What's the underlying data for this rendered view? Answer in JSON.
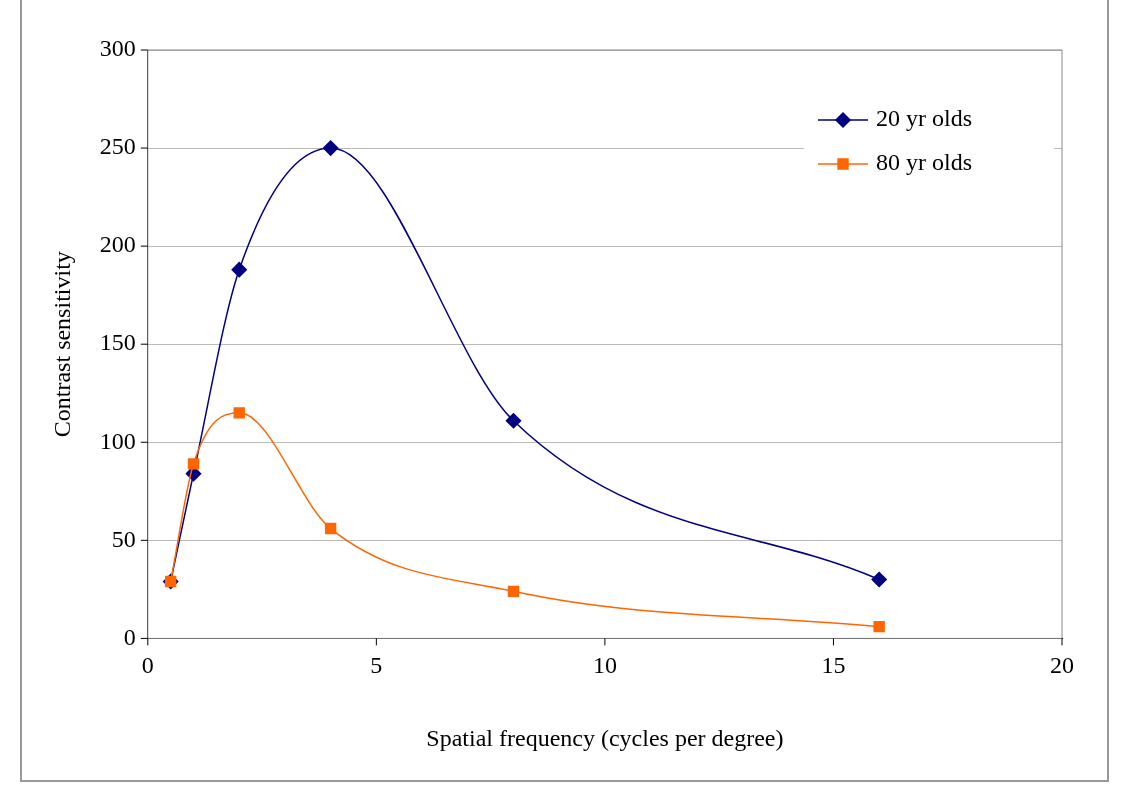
{
  "chart_data": {
    "type": "line",
    "xlabel": "Spatial frequency (cycles per degree)",
    "ylabel": "Contrast sensitivity",
    "xlim": [
      0,
      20
    ],
    "xticks": [
      0,
      5,
      10,
      15,
      20
    ],
    "ylim": [
      0,
      300
    ],
    "yticks": [
      0,
      50,
      100,
      150,
      200,
      250,
      300
    ],
    "grid": "y",
    "legend": "top right",
    "series": [
      {
        "name": "20 yr olds",
        "color": "#000080",
        "marker": "diamond",
        "x": [
          0.5,
          1,
          2,
          4,
          8,
          16
        ],
        "values": [
          29,
          84,
          188,
          250,
          111,
          30
        ]
      },
      {
        "name": "80 yr olds",
        "color": "#ff6600",
        "marker": "square",
        "x": [
          0.5,
          1,
          2,
          4,
          8,
          16
        ],
        "values": [
          29,
          89,
          115,
          56,
          24,
          6
        ]
      }
    ]
  }
}
